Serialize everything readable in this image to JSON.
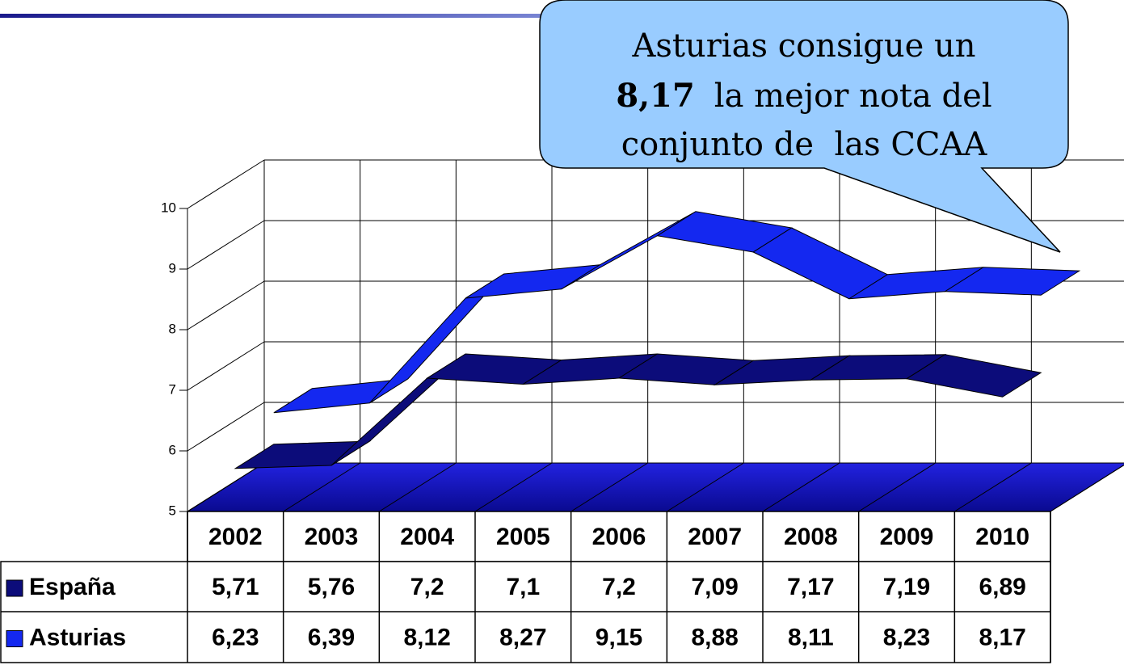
{
  "chart_data": {
    "type": "line3d",
    "categories": [
      "2002",
      "2003",
      "2004",
      "2005",
      "2006",
      "2007",
      "2008",
      "2009",
      "2010"
    ],
    "series": [
      {
        "name": "España",
        "color": "#0c0c7a",
        "values": [
          5.71,
          5.76,
          7.2,
          7.1,
          7.2,
          7.09,
          7.17,
          7.19,
          6.89
        ],
        "value_labels": [
          "5,71",
          "5,76",
          "7,2",
          "7,1",
          "7,2",
          "7,09",
          "7,17",
          "7,19",
          "6,89"
        ]
      },
      {
        "name": "Asturias",
        "color": "#1428f0",
        "values": [
          6.23,
          6.39,
          8.12,
          8.27,
          9.15,
          8.88,
          8.11,
          8.23,
          8.17
        ],
        "value_labels": [
          "6,23",
          "6,39",
          "8,12",
          "8,27",
          "9,15",
          "8,88",
          "8,11",
          "8,23",
          "8,17"
        ]
      }
    ],
    "ylim": [
      5,
      10
    ],
    "yticks": [
      5,
      6,
      7,
      8,
      9,
      10
    ],
    "grid": true,
    "annotation": [
      "Asturias consigue un",
      "8,17",
      "la mejor nota del",
      "conjunto de  las CCAA"
    ]
  }
}
